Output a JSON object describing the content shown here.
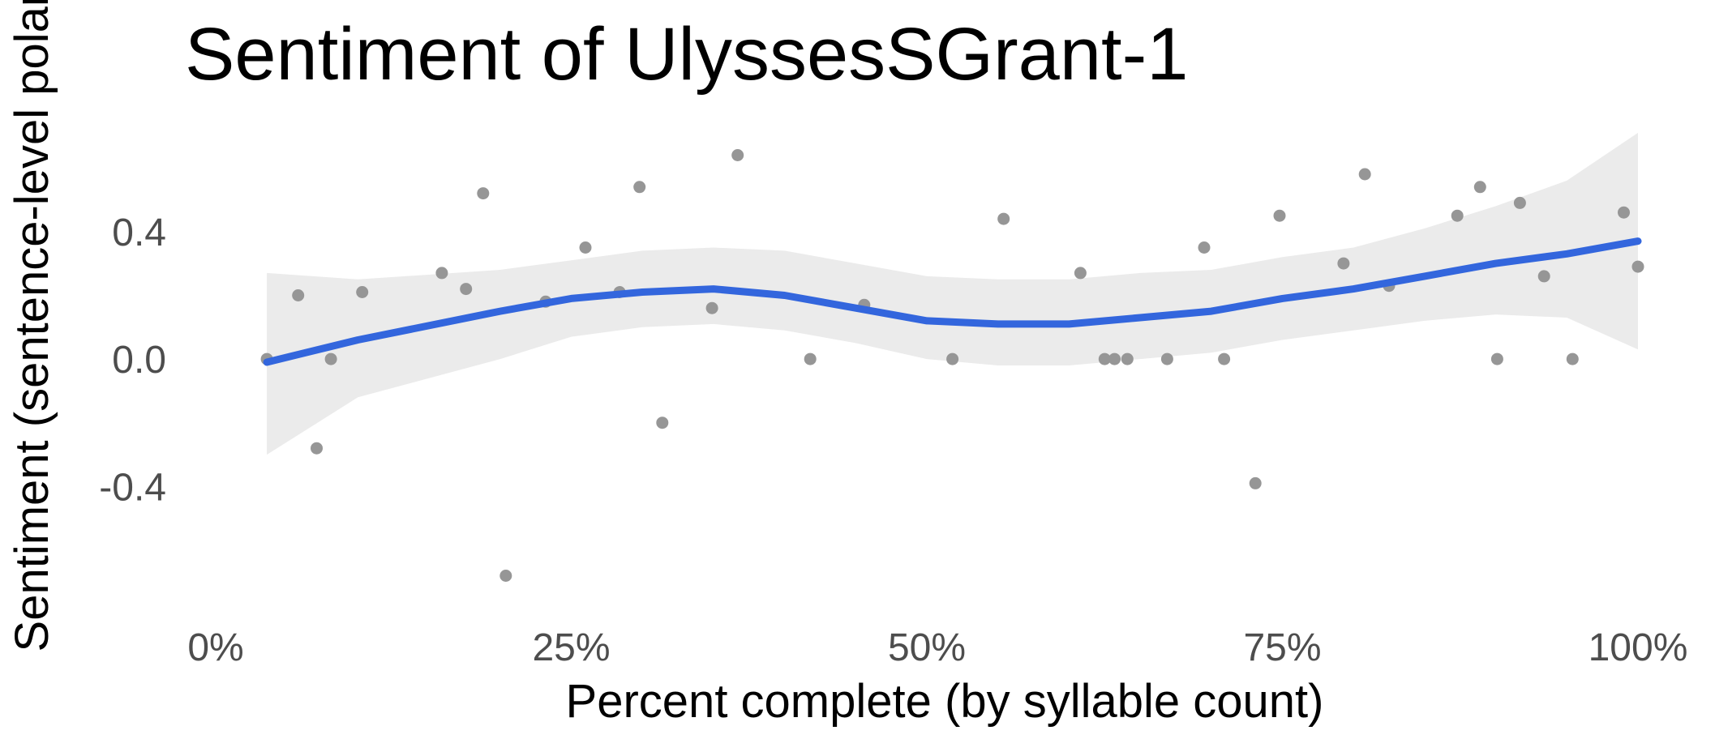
{
  "chart_data": {
    "type": "scatter",
    "title": "Sentiment of UlyssesSGrant-1",
    "xlabel": "Percent complete (by syllable count)",
    "ylabel": "Sentiment (sentence-level polarity)",
    "x_ticks": [
      "0%",
      "25%",
      "50%",
      "75%",
      "100%"
    ],
    "y_ticks": [
      "0.4",
      "0.0",
      "-0.4"
    ],
    "xlim": [
      0,
      1
    ],
    "ylim": [
      -0.75,
      0.72
    ],
    "grid": false,
    "legend": "none",
    "colors": {
      "points": "#969696",
      "smooth": "#3366dd",
      "band": "#ebebeb"
    },
    "series": [
      {
        "type": "scatter",
        "points": [
          [
            0.036,
            0.0
          ],
          [
            0.058,
            0.2
          ],
          [
            0.071,
            -0.28
          ],
          [
            0.081,
            0.0
          ],
          [
            0.103,
            0.21
          ],
          [
            0.159,
            0.27
          ],
          [
            0.176,
            0.22
          ],
          [
            0.188,
            0.52
          ],
          [
            0.204,
            -0.68
          ],
          [
            0.232,
            0.18
          ],
          [
            0.26,
            0.35
          ],
          [
            0.284,
            0.21
          ],
          [
            0.298,
            0.54
          ],
          [
            0.314,
            -0.2
          ],
          [
            0.349,
            0.16
          ],
          [
            0.367,
            0.64
          ],
          [
            0.418,
            0.0
          ],
          [
            0.456,
            0.17
          ],
          [
            0.518,
            0.0
          ],
          [
            0.554,
            0.44
          ],
          [
            0.608,
            0.27
          ],
          [
            0.625,
            0.0
          ],
          [
            0.632,
            0.0
          ],
          [
            0.641,
            0.0
          ],
          [
            0.669,
            0.0
          ],
          [
            0.695,
            0.35
          ],
          [
            0.709,
            0.0
          ],
          [
            0.731,
            -0.39
          ],
          [
            0.748,
            0.45
          ],
          [
            0.793,
            0.3
          ],
          [
            0.808,
            0.58
          ],
          [
            0.825,
            0.23
          ],
          [
            0.873,
            0.45
          ],
          [
            0.889,
            0.54
          ],
          [
            0.901,
            0.0
          ],
          [
            0.917,
            0.49
          ],
          [
            0.934,
            0.26
          ],
          [
            0.954,
            0.0
          ],
          [
            0.99,
            0.46
          ],
          [
            1.0,
            0.29
          ]
        ]
      },
      {
        "type": "smooth",
        "x": [
          0.036,
          0.1,
          0.2,
          0.25,
          0.3,
          0.35,
          0.4,
          0.45,
          0.5,
          0.55,
          0.6,
          0.65,
          0.7,
          0.75,
          0.8,
          0.85,
          0.9,
          0.95,
          1.0
        ],
        "y": [
          -0.01,
          0.06,
          0.15,
          0.19,
          0.21,
          0.22,
          0.2,
          0.16,
          0.12,
          0.11,
          0.11,
          0.13,
          0.15,
          0.19,
          0.22,
          0.26,
          0.3,
          0.33,
          0.37
        ],
        "lower": [
          -0.3,
          -0.12,
          0.0,
          0.07,
          0.1,
          0.11,
          0.09,
          0.05,
          0.0,
          -0.02,
          -0.02,
          0.0,
          0.02,
          0.06,
          0.09,
          0.12,
          0.14,
          0.13,
          0.03
        ],
        "upper": [
          0.27,
          0.25,
          0.28,
          0.31,
          0.34,
          0.35,
          0.34,
          0.3,
          0.26,
          0.25,
          0.25,
          0.27,
          0.28,
          0.32,
          0.35,
          0.41,
          0.48,
          0.56,
          0.71
        ]
      }
    ]
  }
}
